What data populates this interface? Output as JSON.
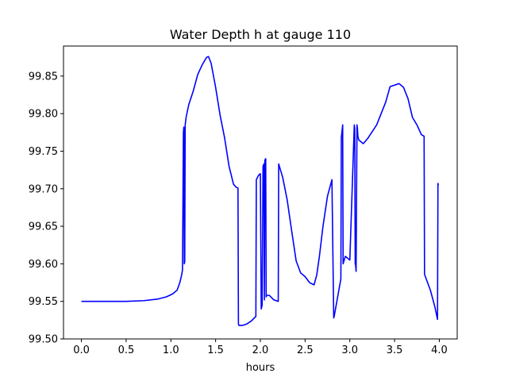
{
  "chart_data": {
    "type": "line",
    "title": "Water Depth h at gauge 110",
    "xlabel": "hours",
    "ylabel": "",
    "xlim": [
      -0.2,
      4.2
    ],
    "ylim": [
      99.5,
      99.89
    ],
    "xticks": [
      0.0,
      0.5,
      1.0,
      1.5,
      2.0,
      2.5,
      3.0,
      3.5,
      4.0
    ],
    "xtick_labels": [
      "0.0",
      "0.5",
      "1.0",
      "1.5",
      "2.0",
      "2.5",
      "3.0",
      "3.5",
      "4.0"
    ],
    "yticks": [
      99.5,
      99.55,
      99.6,
      99.65,
      99.7,
      99.75,
      99.8,
      99.85
    ],
    "ytick_labels": [
      "99.50",
      "99.55",
      "99.60",
      "99.65",
      "99.70",
      "99.75",
      "99.80",
      "99.85"
    ],
    "grid": false,
    "legend": "none",
    "series": [
      {
        "color": "#0000ff",
        "x": [
          0.0,
          0.3,
          0.5,
          0.7,
          0.85,
          0.95,
          1.02,
          1.07,
          1.1,
          1.12,
          1.13,
          1.14,
          1.145,
          1.15,
          1.155,
          1.16,
          1.165,
          1.17,
          1.2,
          1.25,
          1.3,
          1.35,
          1.4,
          1.42,
          1.45,
          1.5,
          1.55,
          1.6,
          1.65,
          1.7,
          1.73,
          1.75,
          1.755,
          1.76,
          1.8,
          1.85,
          1.9,
          1.95,
          1.955,
          1.98,
          2.0,
          2.01,
          2.02,
          2.03,
          2.04,
          2.045,
          2.05,
          2.06,
          2.065,
          2.07,
          2.1,
          2.15,
          2.2,
          2.205,
          2.25,
          2.3,
          2.35,
          2.4,
          2.45,
          2.5,
          2.55,
          2.6,
          2.63,
          2.66,
          2.7,
          2.75,
          2.8,
          2.82,
          2.825,
          2.9,
          2.905,
          2.92,
          2.925,
          2.95,
          3.0,
          3.05,
          3.055,
          3.06,
          3.065,
          3.07,
          3.08,
          3.085,
          3.09,
          3.1,
          3.15,
          3.2,
          3.3,
          3.4,
          3.45,
          3.5,
          3.55,
          3.6,
          3.65,
          3.7,
          3.75,
          3.8,
          3.83,
          3.835,
          3.9,
          3.95,
          3.98,
          3.985,
          3.99
        ],
        "y": [
          99.55,
          99.55,
          99.55,
          99.551,
          99.553,
          99.556,
          99.56,
          99.565,
          99.575,
          99.585,
          99.592,
          99.775,
          99.782,
          99.6,
          99.603,
          99.785,
          99.79,
          99.795,
          99.812,
          99.83,
          99.852,
          99.865,
          99.875,
          99.876,
          99.867,
          99.835,
          99.798,
          99.768,
          99.73,
          99.706,
          99.702,
          99.701,
          99.52,
          99.518,
          99.518,
          99.52,
          99.524,
          99.53,
          99.712,
          99.718,
          99.72,
          99.54,
          99.545,
          99.73,
          99.733,
          99.552,
          99.738,
          99.74,
          99.556,
          99.558,
          99.558,
          99.552,
          99.55,
          99.733,
          99.715,
          99.685,
          99.644,
          99.604,
          99.588,
          99.583,
          99.575,
          99.572,
          99.585,
          99.61,
          99.65,
          99.69,
          99.712,
          99.528,
          99.53,
          99.58,
          99.768,
          99.785,
          99.6,
          99.61,
          99.605,
          99.785,
          99.78,
          99.6,
          99.598,
          99.59,
          99.785,
          99.78,
          99.77,
          99.765,
          99.76,
          99.767,
          99.785,
          99.815,
          99.836,
          99.838,
          99.84,
          99.835,
          99.82,
          99.795,
          99.785,
          99.772,
          99.77,
          99.586,
          99.565,
          99.543,
          99.526,
          99.707,
          99.705
        ]
      }
    ]
  }
}
